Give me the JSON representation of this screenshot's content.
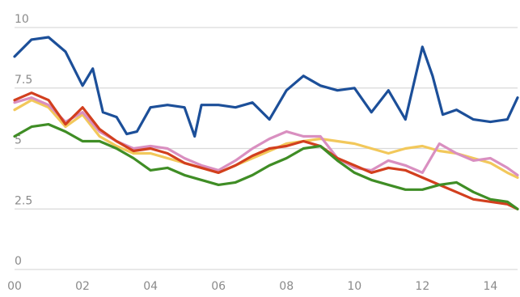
{
  "chart_data": {
    "type": "line",
    "title": "",
    "xlabel": "",
    "ylabel": "",
    "xlim": [
      0,
      14.8
    ],
    "ylim": [
      0,
      10
    ],
    "grid": true,
    "legend": "none",
    "x_ticks": [
      {
        "value": 0,
        "label": "00"
      },
      {
        "value": 2,
        "label": "02"
      },
      {
        "value": 4,
        "label": "04"
      },
      {
        "value": 6,
        "label": "06"
      },
      {
        "value": 8,
        "label": "08"
      },
      {
        "value": 10,
        "label": "10"
      },
      {
        "value": 12,
        "label": "12"
      },
      {
        "value": 14,
        "label": "14"
      }
    ],
    "y_ticks": [
      {
        "value": 0,
        "label": "0"
      },
      {
        "value": 2.5,
        "label": "2.5"
      },
      {
        "value": 5,
        "label": "5"
      },
      {
        "value": 7.5,
        "label": "7.5"
      },
      {
        "value": 10,
        "label": "10"
      }
    ],
    "series": [
      {
        "color": "#f2c85b",
        "x": [
          0,
          0.5,
          1,
          1.5,
          2,
          2.5,
          3,
          3.5,
          4,
          4.5,
          5,
          5.5,
          6,
          6.5,
          7,
          7.5,
          8,
          8.5,
          9,
          9.5,
          10,
          10.5,
          11,
          11.5,
          12,
          12.5,
          13,
          13.5,
          14,
          14.5,
          14.8
        ],
        "y": [
          6.6,
          7.0,
          6.7,
          5.9,
          6.4,
          5.5,
          5.1,
          4.8,
          4.8,
          4.6,
          4.4,
          4.2,
          4.0,
          4.3,
          4.6,
          4.9,
          5.2,
          5.3,
          5.4,
          5.3,
          5.2,
          5.0,
          4.8,
          5.0,
          5.1,
          4.9,
          4.8,
          4.6,
          4.4,
          4.0,
          3.8
        ]
      },
      {
        "color": "#d98fc0",
        "x": [
          0,
          0.5,
          1,
          1.5,
          2,
          2.5,
          3,
          3.5,
          4,
          4.5,
          5,
          5.5,
          6,
          6.5,
          7,
          7.5,
          8,
          8.5,
          9,
          9.5,
          10,
          10.5,
          11,
          11.5,
          12,
          12.5,
          13,
          13.5,
          14,
          14.5,
          14.8
        ],
        "y": [
          6.9,
          7.1,
          6.8,
          6.1,
          6.5,
          5.7,
          5.3,
          5.0,
          5.1,
          5.0,
          4.6,
          4.3,
          4.1,
          4.5,
          5.0,
          5.4,
          5.7,
          5.5,
          5.5,
          4.6,
          4.2,
          4.1,
          4.5,
          4.3,
          4.0,
          5.2,
          4.8,
          4.5,
          4.6,
          4.2,
          3.9
        ]
      },
      {
        "color": "#d23f1e",
        "x": [
          0,
          0.5,
          1,
          1.5,
          2,
          2.5,
          3,
          3.5,
          4,
          4.5,
          5,
          5.5,
          6,
          6.5,
          7,
          7.5,
          8,
          8.5,
          9,
          9.5,
          10,
          10.5,
          11,
          11.5,
          12,
          12.5,
          13,
          13.5,
          14,
          14.5,
          14.8
        ],
        "y": [
          7.0,
          7.3,
          7.0,
          6.0,
          6.7,
          5.8,
          5.3,
          4.9,
          5.0,
          4.8,
          4.4,
          4.2,
          4.0,
          4.3,
          4.7,
          5.0,
          5.1,
          5.3,
          5.1,
          4.6,
          4.3,
          4.0,
          4.2,
          4.1,
          3.8,
          3.5,
          3.2,
          2.9,
          2.8,
          2.7,
          2.5
        ]
      },
      {
        "color": "#3f8d25",
        "x": [
          0,
          0.5,
          1,
          1.5,
          2,
          2.5,
          3,
          3.5,
          4,
          4.5,
          5,
          5.5,
          6,
          6.5,
          7,
          7.5,
          8,
          8.5,
          9,
          9.5,
          10,
          10.5,
          11,
          11.5,
          12,
          12.5,
          13,
          13.5,
          14,
          14.5,
          14.8
        ],
        "y": [
          5.5,
          5.9,
          6.0,
          5.7,
          5.3,
          5.3,
          5.0,
          4.6,
          4.1,
          4.2,
          3.9,
          3.7,
          3.5,
          3.6,
          3.9,
          4.3,
          4.6,
          5.0,
          5.1,
          4.5,
          4.0,
          3.7,
          3.5,
          3.3,
          3.3,
          3.5,
          3.6,
          3.2,
          2.9,
          2.8,
          2.5
        ]
      },
      {
        "color": "#1c4f99",
        "x": [
          0,
          0.5,
          1,
          1.5,
          2,
          2.3,
          2.6,
          3,
          3.3,
          3.6,
          4,
          4.5,
          5,
          5.3,
          5.5,
          6,
          6.5,
          7,
          7.5,
          8,
          8.5,
          9,
          9.5,
          10,
          10.5,
          11,
          11.5,
          12,
          12.3,
          12.6,
          13,
          13.5,
          14,
          14.5,
          14.8
        ],
        "y": [
          8.8,
          9.5,
          9.6,
          9.0,
          7.6,
          8.3,
          6.5,
          6.3,
          5.6,
          5.7,
          6.7,
          6.8,
          6.7,
          5.5,
          6.8,
          6.8,
          6.7,
          6.9,
          6.2,
          7.4,
          8.0,
          7.6,
          7.4,
          7.5,
          6.5,
          7.4,
          6.2,
          9.2,
          8.0,
          6.4,
          6.6,
          6.2,
          6.1,
          6.2,
          7.1
        ]
      }
    ]
  }
}
